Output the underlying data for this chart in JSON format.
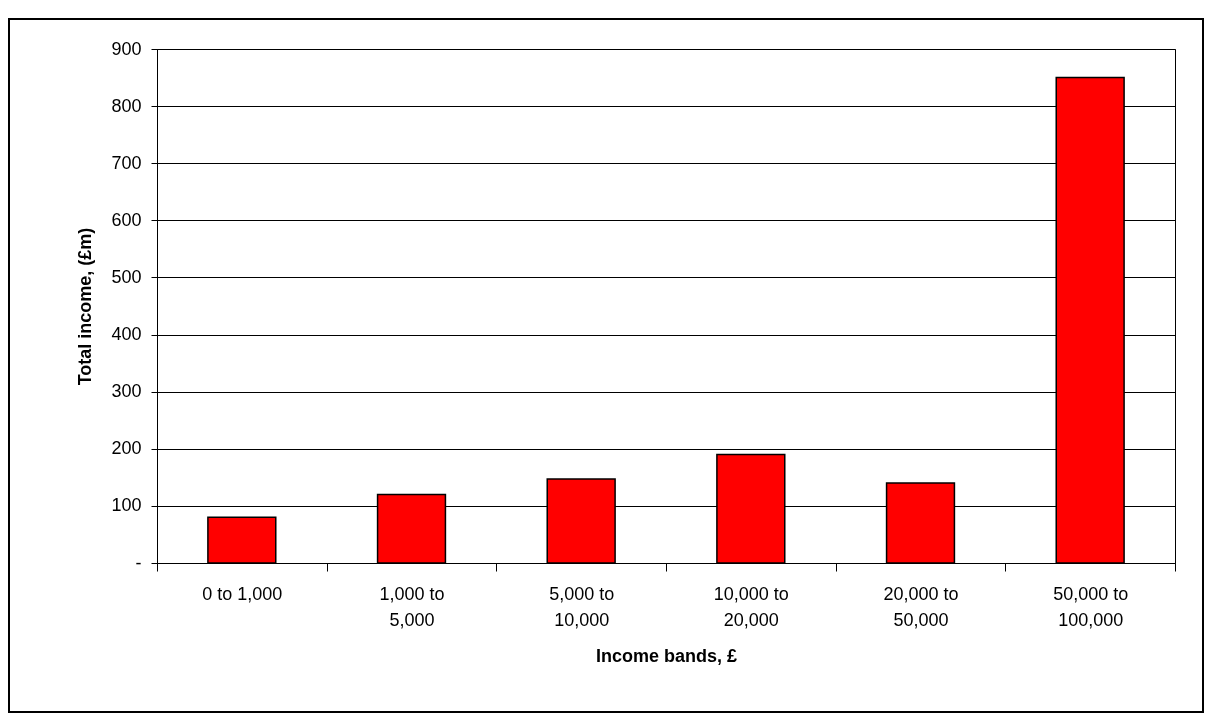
{
  "chart_data": {
    "type": "bar",
    "xlabel": "Income bands, £",
    "ylabel": "Total income, (£m)",
    "categories": [
      "0 to 1,000",
      "1,000 to 5,000",
      "5,000 to 10,000",
      "10,000 to 20,000",
      "20,000 to 50,000",
      "50,000 to 100,000"
    ],
    "values": [
      80,
      120,
      147,
      190,
      140,
      850
    ],
    "color": "#ff0000",
    "ylim": [
      0,
      900
    ],
    "yticks": [
      {
        "value": 0,
        "label": "-"
      },
      100,
      200,
      300,
      400,
      500,
      600,
      700,
      800,
      900
    ],
    "grid": "y"
  }
}
